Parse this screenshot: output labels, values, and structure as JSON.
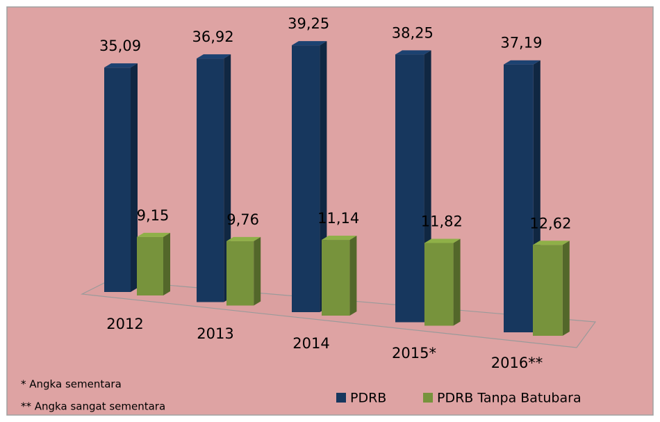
{
  "chart_data": {
    "type": "bar3d",
    "categories": [
      "2012",
      "2013",
      "2014",
      "2015*",
      "2016**"
    ],
    "series": [
      {
        "name": "PDRB",
        "color": "#17375e",
        "values": [
          35.09,
          36.92,
          39.25,
          38.25,
          37.19
        ],
        "value_labels": [
          "35,09",
          "36,92",
          "39,25",
          "38,25",
          "37,19"
        ]
      },
      {
        "name": "PDRB Tanpa Batubara",
        "color": "#77933c",
        "values": [
          9.15,
          9.76,
          11.14,
          11.82,
          12.62
        ],
        "value_labels": [
          "9,15",
          "9,76",
          "11,14",
          "11,82",
          "12,62"
        ]
      }
    ],
    "notes": [
      "* Angka sementara",
      "** Angka sangat sementara"
    ],
    "legend": "bottom"
  }
}
